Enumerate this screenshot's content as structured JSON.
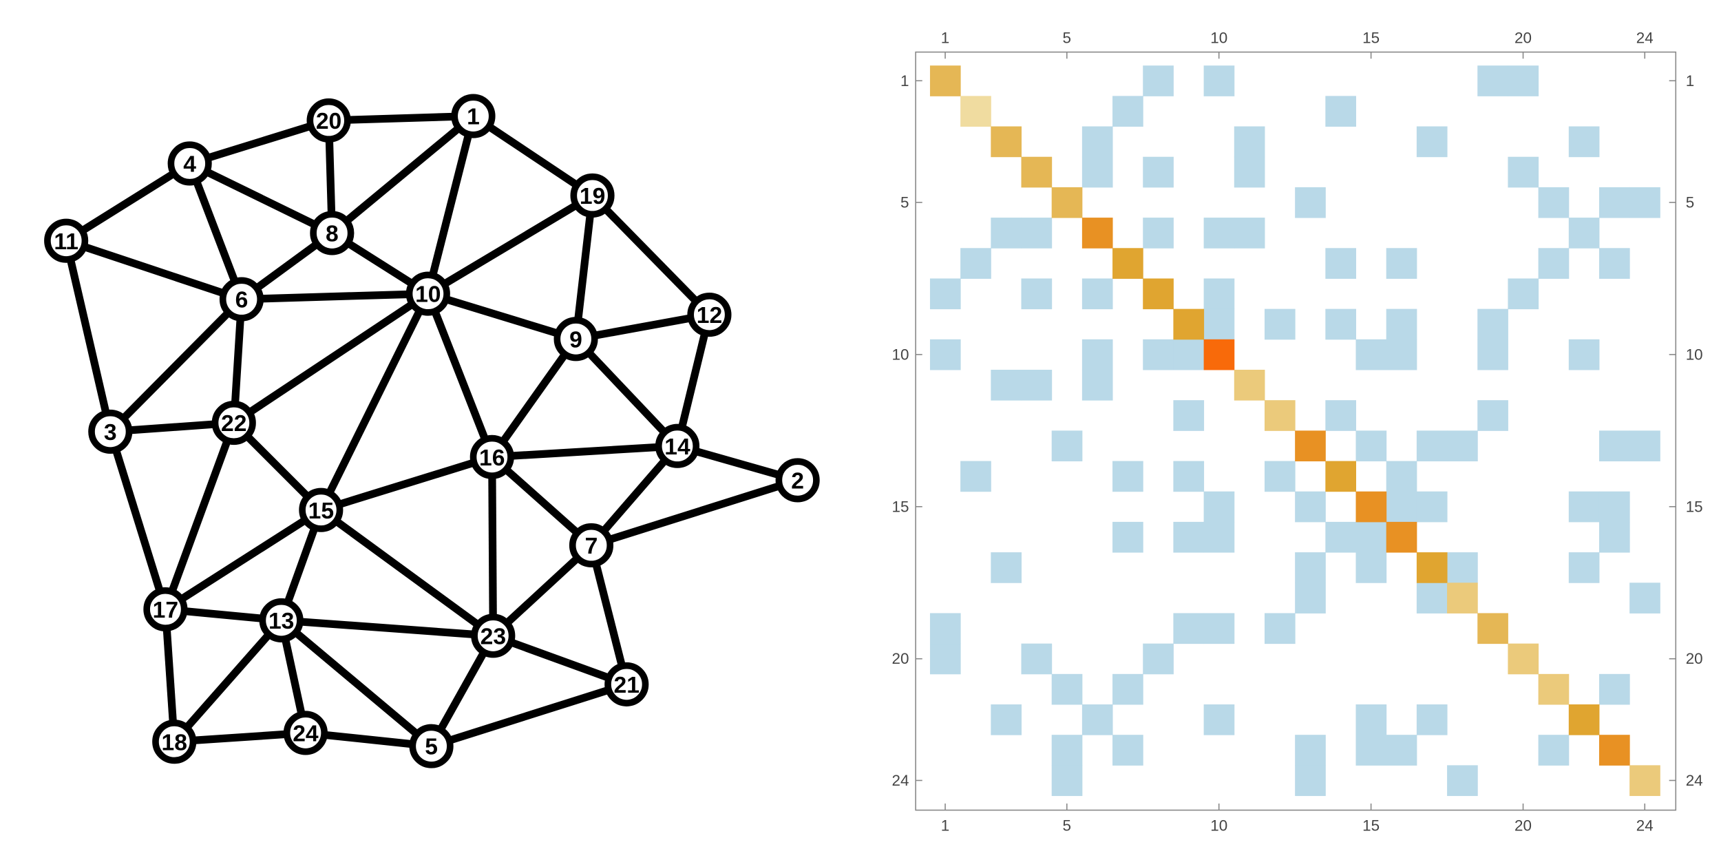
{
  "graph": {
    "nodes": [
      1,
      2,
      3,
      4,
      5,
      6,
      7,
      8,
      9,
      10,
      11,
      12,
      13,
      14,
      15,
      16,
      17,
      18,
      19,
      20,
      21,
      22,
      23,
      24
    ],
    "edges": [
      [
        20,
        1
      ],
      [
        20,
        4
      ],
      [
        20,
        8
      ],
      [
        1,
        8
      ],
      [
        1,
        10
      ],
      [
        1,
        19
      ],
      [
        4,
        11
      ],
      [
        4,
        8
      ],
      [
        4,
        6
      ],
      [
        11,
        6
      ],
      [
        11,
        3
      ],
      [
        8,
        6
      ],
      [
        8,
        10
      ],
      [
        6,
        10
      ],
      [
        6,
        3
      ],
      [
        6,
        22
      ],
      [
        19,
        10
      ],
      [
        19,
        9
      ],
      [
        19,
        12
      ],
      [
        10,
        9
      ],
      [
        10,
        22
      ],
      [
        10,
        15
      ],
      [
        10,
        16
      ],
      [
        9,
        12
      ],
      [
        9,
        16
      ],
      [
        9,
        14
      ],
      [
        12,
        14
      ],
      [
        14,
        16
      ],
      [
        14,
        2
      ],
      [
        14,
        7
      ],
      [
        2,
        7
      ],
      [
        3,
        22
      ],
      [
        3,
        17
      ],
      [
        22,
        17
      ],
      [
        22,
        15
      ],
      [
        16,
        15
      ],
      [
        16,
        7
      ],
      [
        16,
        23
      ],
      [
        15,
        17
      ],
      [
        15,
        13
      ],
      [
        15,
        23
      ],
      [
        7,
        23
      ],
      [
        7,
        21
      ],
      [
        17,
        13
      ],
      [
        17,
        18
      ],
      [
        13,
        23
      ],
      [
        13,
        18
      ],
      [
        13,
        24
      ],
      [
        13,
        5
      ],
      [
        23,
        5
      ],
      [
        23,
        21
      ],
      [
        18,
        24
      ],
      [
        24,
        5
      ],
      [
        5,
        21
      ]
    ]
  },
  "matrix": {
    "ticks": [
      1,
      5,
      10,
      15,
      20,
      24
    ]
  }
}
